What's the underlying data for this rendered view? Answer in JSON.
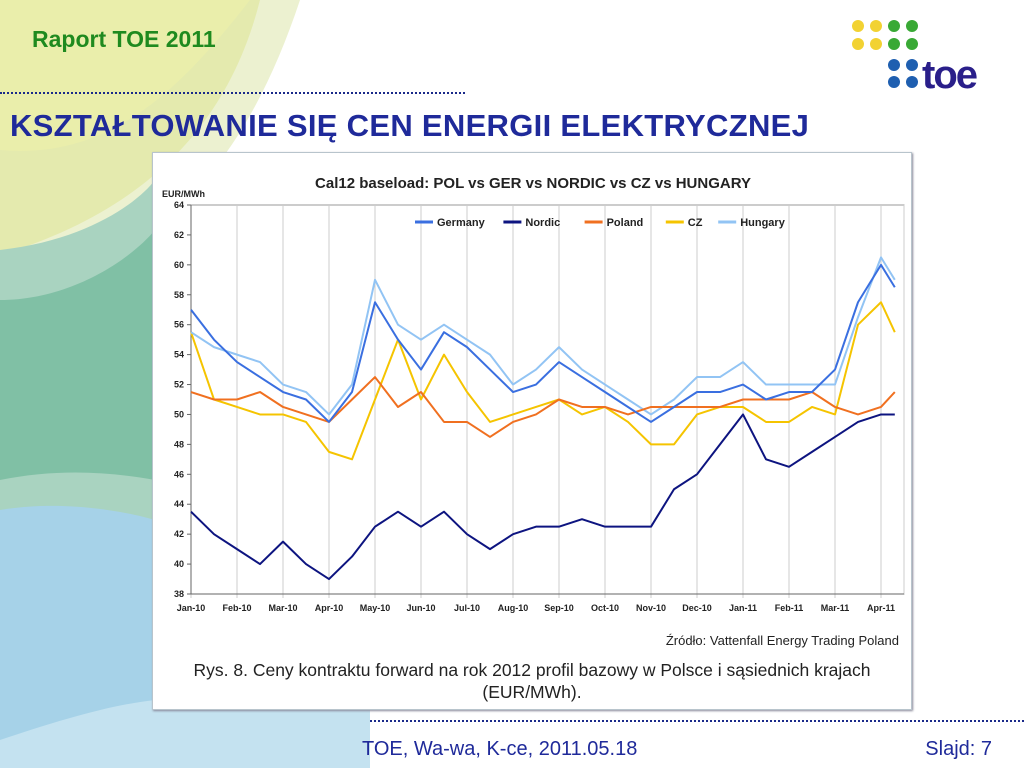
{
  "header": {
    "report": "Raport TOE 2011",
    "title": "KSZTAŁTOWANIE SIĘ CEN ENERGII ELEKTRYCZNEJ",
    "logo_text": "toe"
  },
  "footer": {
    "left": "TOE, Wa-wa, K-ce, 2011.05.18",
    "slide": "Slajd: 7"
  },
  "source": "Źródło: Vattenfall Energy Trading Poland",
  "caption_line1": "Rys. 8. Ceny kontraktu forward na rok 2012 profil bazowy w Polsce i sąsiednich krajach",
  "caption_line2": "(EUR/MWh).",
  "chart_data": {
    "type": "line",
    "title": "Cal12 baseload: POL vs GER vs NORDIC vs CZ vs HUNGARY",
    "ylabel": "EUR/MWh",
    "xlabel": "",
    "ylim": [
      38,
      64
    ],
    "yticks": [
      38,
      40,
      42,
      44,
      46,
      48,
      50,
      52,
      54,
      56,
      58,
      60,
      62,
      64
    ],
    "categories": [
      "Jan-10",
      "Feb-10",
      "Mar-10",
      "Apr-10",
      "May-10",
      "Jun-10",
      "Jul-10",
      "Aug-10",
      "Sep-10",
      "Oct-10",
      "Nov-10",
      "Dec-10",
      "Jan-11",
      "Feb-11",
      "Mar-11",
      "Apr-11"
    ],
    "x": [
      0,
      0.5,
      1,
      1.5,
      2,
      2.5,
      3,
      3.5,
      4,
      4.5,
      5,
      5.5,
      6,
      6.5,
      7,
      7.5,
      8,
      8.5,
      9,
      9.5,
      10,
      10.5,
      11,
      11.5,
      12,
      12.5,
      13,
      13.5,
      14,
      14.5,
      15,
      15.3
    ],
    "legend": "top-right",
    "grid": true,
    "series": [
      {
        "name": "Germany",
        "color": "#3a6fe0",
        "values": [
          57,
          55,
          53.5,
          52.5,
          51.5,
          51,
          49.5,
          51.5,
          57.5,
          55,
          53,
          55.5,
          54.5,
          53,
          51.5,
          52,
          53.5,
          52.5,
          51.5,
          50.5,
          49.5,
          50.5,
          51.5,
          51.5,
          52,
          51,
          51.5,
          51.5,
          53,
          57.5,
          60,
          58.5
        ]
      },
      {
        "name": "Nordic",
        "color": "#0d1480",
        "values": [
          43.5,
          42,
          41,
          40,
          41.5,
          40,
          39,
          40.5,
          42.5,
          43.5,
          42.5,
          43.5,
          42,
          41,
          42,
          42.5,
          42.5,
          43,
          42.5,
          42.5,
          42.5,
          45,
          46,
          48,
          50,
          47,
          46.5,
          47.5,
          48.5,
          49.5,
          50,
          50
        ]
      },
      {
        "name": "Poland",
        "color": "#f07020",
        "values": [
          51.5,
          51,
          51,
          51.5,
          50.5,
          50,
          49.5,
          51,
          52.5,
          50.5,
          51.5,
          49.5,
          49.5,
          48.5,
          49.5,
          50,
          51,
          50.5,
          50.5,
          50,
          50.5,
          50.5,
          50.5,
          50.5,
          51,
          51,
          51,
          51.5,
          50.5,
          50,
          50.5,
          51.5
        ]
      },
      {
        "name": "CZ",
        "color": "#f5c400",
        "values": [
          55.5,
          51,
          50.5,
          50,
          50,
          49.5,
          47.5,
          47,
          51,
          55,
          51,
          54,
          51.5,
          49.5,
          50,
          50.5,
          51,
          50,
          50.5,
          49.5,
          48,
          48,
          50,
          50.5,
          50.5,
          49.5,
          49.5,
          50.5,
          50,
          56,
          57.5,
          55.5
        ]
      },
      {
        "name": "Hungary",
        "color": "#92c4f4",
        "values": [
          55.5,
          54.5,
          54,
          53.5,
          52,
          51.5,
          50,
          52,
          59,
          56,
          55,
          56,
          55,
          54,
          52,
          53,
          54.5,
          53,
          52,
          51,
          50,
          51,
          52.5,
          52.5,
          53.5,
          52,
          52,
          52,
          52,
          56.5,
          60.5,
          59
        ]
      }
    ]
  }
}
